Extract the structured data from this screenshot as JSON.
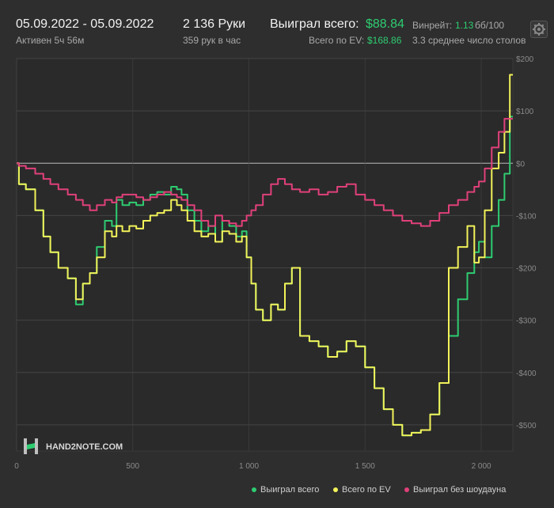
{
  "header": {
    "date_range": "05.09.2022 - 05.09.2022",
    "active_time": "Активен 5ч 56м",
    "hands": "2 136 Руки",
    "hands_per_hour": "359 рук в час",
    "won_total_label": "Выиграл всего:",
    "won_total_value": "$88.84",
    "ev_total_label": "Всего по EV:",
    "ev_total_value": "$168.86",
    "winrate_label": "Винрейт:",
    "winrate_value": "1.13",
    "winrate_unit": "бб/100",
    "avg_tables": "3.3 среднее число столов"
  },
  "brand": {
    "logo_text": "HAND2NOTE.COM"
  },
  "icons": {
    "settings": "gear-icon",
    "logo": "hand2note-logo-icon"
  },
  "colors": {
    "background": "#2e2e2e",
    "won": "#2ecc71",
    "ev": "#f2f25a",
    "no_showdown": "#e0407a",
    "grid": "#444444",
    "zero_line": "#bbbbbb"
  },
  "chart_data": {
    "type": "line",
    "xlim": [
      0,
      2136
    ],
    "ylim": [
      -550,
      200
    ],
    "x_ticks": [
      0,
      500,
      1000,
      1500,
      2000
    ],
    "x_tick_labels": [
      "0",
      "500",
      "1 000",
      "1 500",
      "2 000"
    ],
    "y_ticks": [
      200,
      100,
      0,
      -100,
      -200,
      -300,
      -400,
      -500
    ],
    "y_tick_labels": [
      "$200",
      "$100",
      "$0",
      "-$100",
      "-$200",
      "-$300",
      "-$400",
      "-$500"
    ],
    "grid": true,
    "legend_position": "bottom-right",
    "series": [
      {
        "name": "Выиграл всего",
        "color": "#2ecc71",
        "x": [
          0,
          20,
          60,
          100,
          130,
          160,
          200,
          240,
          270,
          300,
          330,
          360,
          400,
          420,
          440,
          470,
          500,
          530,
          560,
          590,
          620,
          650,
          680,
          700,
          720,
          750,
          780,
          810,
          840,
          870,
          900,
          930,
          960,
          980,
          1000,
          1020,
          1040,
          1080,
          1110,
          1140,
          1170,
          1200,
          1240,
          1280,
          1320,
          1360,
          1400,
          1440,
          1480,
          1520,
          1560,
          1600,
          1640,
          1680,
          1720,
          1760,
          1800,
          1840,
          1880,
          1920,
          1960,
          1980,
          2000,
          2030,
          2060,
          2090,
          2110,
          2136
        ],
        "y": [
          0,
          -40,
          -50,
          -90,
          -140,
          -170,
          -200,
          -220,
          -270,
          -230,
          -210,
          -160,
          -110,
          -120,
          -70,
          -80,
          -75,
          -80,
          -70,
          -60,
          -55,
          -60,
          -45,
          -50,
          -60,
          -90,
          -110,
          -130,
          -120,
          -150,
          -110,
          -120,
          -140,
          -130,
          -180,
          -230,
          -280,
          -300,
          -270,
          -280,
          -230,
          -200,
          -330,
          -340,
          -350,
          -370,
          -360,
          -340,
          -350,
          -390,
          -430,
          -470,
          -500,
          -520,
          -515,
          -510,
          -480,
          -420,
          -330,
          -260,
          -210,
          -170,
          -150,
          -180,
          -120,
          -70,
          -20,
          89
        ]
      },
      {
        "name": "Всего по EV",
        "color": "#f2f25a",
        "x": [
          0,
          20,
          60,
          100,
          130,
          160,
          200,
          240,
          270,
          300,
          330,
          360,
          400,
          420,
          440,
          470,
          500,
          530,
          560,
          590,
          620,
          650,
          680,
          700,
          720,
          750,
          780,
          810,
          840,
          870,
          900,
          930,
          960,
          980,
          1000,
          1020,
          1040,
          1080,
          1110,
          1140,
          1170,
          1200,
          1240,
          1280,
          1320,
          1360,
          1400,
          1440,
          1480,
          1520,
          1560,
          1600,
          1640,
          1680,
          1720,
          1760,
          1800,
          1840,
          1880,
          1920,
          1960,
          1980,
          2000,
          2030,
          2060,
          2090,
          2110,
          2136
        ],
        "y": [
          0,
          -40,
          -50,
          -90,
          -140,
          -170,
          -200,
          -220,
          -260,
          -230,
          -210,
          -180,
          -130,
          -140,
          -120,
          -130,
          -120,
          -125,
          -110,
          -100,
          -95,
          -90,
          -70,
          -80,
          -90,
          -110,
          -130,
          -140,
          -135,
          -150,
          -130,
          -135,
          -150,
          -140,
          -180,
          -230,
          -280,
          -300,
          -270,
          -280,
          -230,
          -200,
          -330,
          -340,
          -350,
          -370,
          -360,
          -340,
          -350,
          -390,
          -430,
          -470,
          -500,
          -520,
          -515,
          -510,
          -480,
          -420,
          -200,
          -160,
          -120,
          -190,
          -180,
          -90,
          -10,
          20,
          60,
          169
        ]
      },
      {
        "name": "Выиграл без шоудауна",
        "color": "#e0407a",
        "x": [
          0,
          20,
          60,
          100,
          130,
          160,
          200,
          240,
          270,
          300,
          330,
          360,
          400,
          420,
          440,
          470,
          500,
          530,
          560,
          590,
          620,
          650,
          680,
          700,
          720,
          750,
          780,
          810,
          840,
          870,
          900,
          930,
          960,
          980,
          1000,
          1020,
          1040,
          1080,
          1110,
          1140,
          1170,
          1200,
          1240,
          1280,
          1320,
          1360,
          1400,
          1440,
          1480,
          1520,
          1560,
          1600,
          1640,
          1680,
          1720,
          1760,
          1800,
          1840,
          1880,
          1920,
          1960,
          1980,
          2000,
          2030,
          2060,
          2090,
          2110,
          2136
        ],
        "y": [
          0,
          -5,
          -10,
          -20,
          -30,
          -40,
          -50,
          -60,
          -70,
          -80,
          -90,
          -80,
          -70,
          -75,
          -65,
          -60,
          -60,
          -65,
          -70,
          -65,
          -60,
          -55,
          -60,
          -65,
          -70,
          -80,
          -90,
          -110,
          -120,
          -100,
          -110,
          -115,
          -120,
          -110,
          -100,
          -90,
          -80,
          -60,
          -40,
          -30,
          -40,
          -50,
          -55,
          -50,
          -60,
          -55,
          -45,
          -40,
          -60,
          -70,
          -80,
          -90,
          -100,
          -110,
          -115,
          -120,
          -110,
          -95,
          -80,
          -70,
          -55,
          -45,
          -35,
          -10,
          30,
          60,
          85,
          85
        ]
      }
    ]
  }
}
